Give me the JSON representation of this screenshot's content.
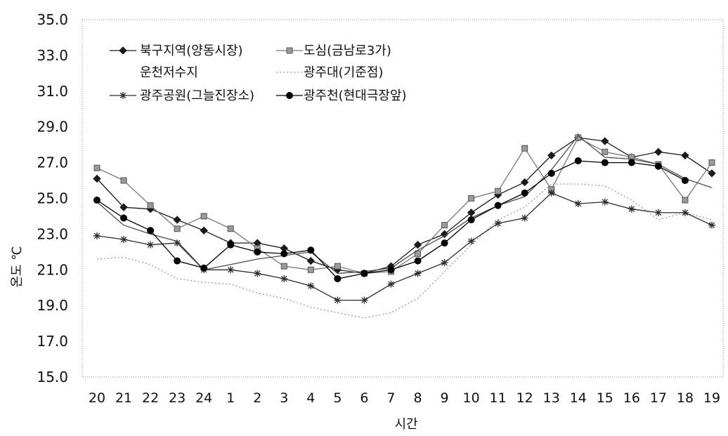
{
  "chart_data": {
    "type": "line",
    "title": "",
    "xlabel": "시간",
    "ylabel": "온도 ℃",
    "ylim": [
      15.0,
      35.0
    ],
    "y_ticks": [
      "35.0",
      "33.0",
      "31.0",
      "29.0",
      "27.0",
      "25.0",
      "23.0",
      "21.0",
      "19.0",
      "17.0",
      "15.0"
    ],
    "categories": [
      "20",
      "21",
      "22",
      "23",
      "24",
      "1",
      "2",
      "3",
      "4",
      "5",
      "6",
      "7",
      "8",
      "9",
      "10",
      "11",
      "12",
      "13",
      "14",
      "15",
      "16",
      "17",
      "18",
      "19"
    ],
    "grid": false,
    "legend_position": "top-left",
    "series": [
      {
        "name": "북구지역(양동시장)",
        "marker": "diamond",
        "color": "#1a1a1a",
        "dash": "",
        "values": [
          26.1,
          24.5,
          24.4,
          23.8,
          23.2,
          22.5,
          22.5,
          22.2,
          21.5,
          21.0,
          20.8,
          21.2,
          22.4,
          23.0,
          24.2,
          25.2,
          25.9,
          27.4,
          28.4,
          28.2,
          27.3,
          27.6,
          27.4,
          26.4
        ]
      },
      {
        "name": "도심(금남로3가)",
        "marker": "square",
        "color": "#777777",
        "dash": "",
        "values": [
          26.7,
          26.0,
          24.6,
          23.3,
          24.0,
          23.3,
          22.2,
          21.2,
          21.0,
          21.2,
          20.8,
          20.9,
          21.9,
          23.5,
          25.0,
          25.4,
          27.8,
          25.5,
          28.4,
          27.6,
          27.3,
          26.9,
          24.9,
          27.0
        ]
      },
      {
        "name": "운천저수지",
        "marker": "none",
        "color": "#4d4d4d",
        "dash": "",
        "values": [
          24.8,
          23.5,
          23.0,
          22.6,
          21.0,
          21.3,
          21.6,
          21.8,
          22.0,
          20.8,
          20.9,
          21.1,
          22.1,
          22.9,
          23.9,
          24.6,
          25.1,
          26.6,
          28.5,
          27.3,
          27.2,
          26.9,
          26.1,
          25.6
        ]
      },
      {
        "name": "광주대(기준점)",
        "marker": "none",
        "color": "#999999",
        "dash": "2,3",
        "values": [
          21.6,
          21.7,
          21.3,
          20.5,
          20.3,
          20.2,
          19.7,
          19.4,
          18.9,
          18.6,
          18.3,
          18.6,
          19.4,
          20.9,
          22.4,
          23.8,
          24.5,
          25.8,
          25.8,
          25.7,
          24.9,
          23.8,
          24.2,
          23.8
        ]
      },
      {
        "name": "광주공원(그늘진장소)",
        "marker": "star",
        "color": "#2b2b2b",
        "dash": "",
        "values": [
          22.9,
          22.7,
          22.4,
          22.5,
          21.0,
          21.0,
          20.8,
          20.5,
          20.1,
          19.3,
          19.3,
          20.2,
          20.8,
          21.4,
          22.6,
          23.6,
          23.9,
          25.3,
          24.7,
          24.8,
          24.4,
          24.2,
          24.2,
          23.5
        ]
      },
      {
        "name": "광주천(현대극장앞)",
        "marker": "circle",
        "color": "#000000",
        "dash": "",
        "values": [
          24.9,
          23.9,
          23.2,
          21.5,
          21.1,
          22.4,
          22.0,
          21.9,
          22.1,
          20.5,
          20.8,
          21.0,
          21.5,
          22.5,
          23.8,
          24.6,
          25.3,
          26.4,
          27.1,
          27.0,
          27.0,
          26.8,
          26.0,
          null
        ]
      }
    ]
  }
}
